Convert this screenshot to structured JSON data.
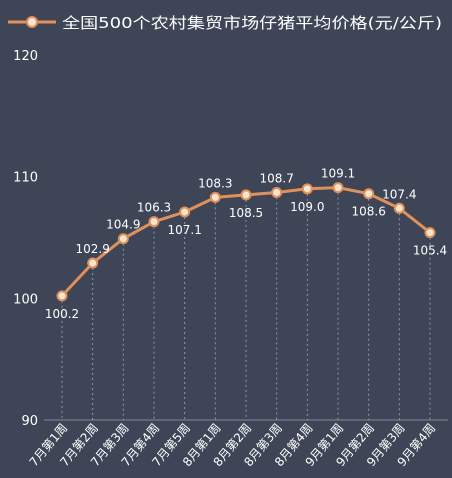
{
  "chart_data": {
    "type": "line",
    "legend_label": "全国500个农村集贸市场仔猪平均价格(元/公斤)",
    "legend_position": "top-left",
    "categories": [
      "7月第1周",
      "7月第2周",
      "7月第3周",
      "7月第4周",
      "7月第5周",
      "8月第1周",
      "8月第2周",
      "8月第3周",
      "8月第4周",
      "9月第1周",
      "9月第2周",
      "9月第3周",
      "9月第4周"
    ],
    "values": [
      100.2,
      102.9,
      104.9,
      106.3,
      107.1,
      108.3,
      108.5,
      108.7,
      109.0,
      109.1,
      108.6,
      107.4,
      105.4
    ],
    "value_labels": [
      "100.2",
      "102.9",
      "104.9",
      "106.3",
      "107.1",
      "108.3",
      "108.5",
      "108.7",
      "109.0",
      "109.1",
      "108.6",
      "107.4",
      "105.4"
    ],
    "y_ticks": [
      "90",
      "100",
      "110",
      "120"
    ],
    "ylim": [
      90,
      120
    ],
    "grid": "vertical-dotted",
    "colors": {
      "background": "#3e4557",
      "line": "#e0915a",
      "marker_fill": "#f6e6d2",
      "marker_stroke": "#e0915a",
      "text": "#ffffff",
      "grid": "#c8ccd6"
    }
  }
}
